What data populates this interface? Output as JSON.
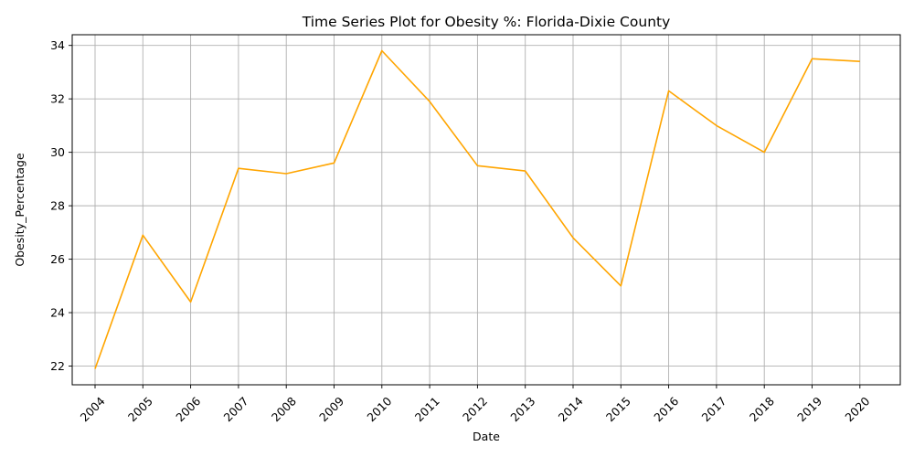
{
  "chart_data": {
    "type": "line",
    "title": "Time Series Plot for Obesity %: Florida-Dixie County",
    "xlabel": "Date",
    "ylabel": "Obesity_Percentage",
    "categories": [
      "2004",
      "2005",
      "2006",
      "2007",
      "2008",
      "2009",
      "2010",
      "2011",
      "2012",
      "2013",
      "2014",
      "2015",
      "2016",
      "2017",
      "2018",
      "2019",
      "2020"
    ],
    "series": [
      {
        "values": [
          21.9,
          26.9,
          24.4,
          29.4,
          29.2,
          29.6,
          33.8,
          31.9,
          29.5,
          29.3,
          26.8,
          25.0,
          32.3,
          31.0,
          30.0,
          33.5,
          33.4
        ]
      }
    ],
    "yticks": [
      22,
      24,
      26,
      28,
      30,
      32,
      34
    ],
    "ylim": [
      21.3,
      34.4
    ],
    "grid": true,
    "line_color": "#ffa500",
    "grid_color": "#b0b0b0",
    "x_tick_rotation": "45 degrees"
  }
}
